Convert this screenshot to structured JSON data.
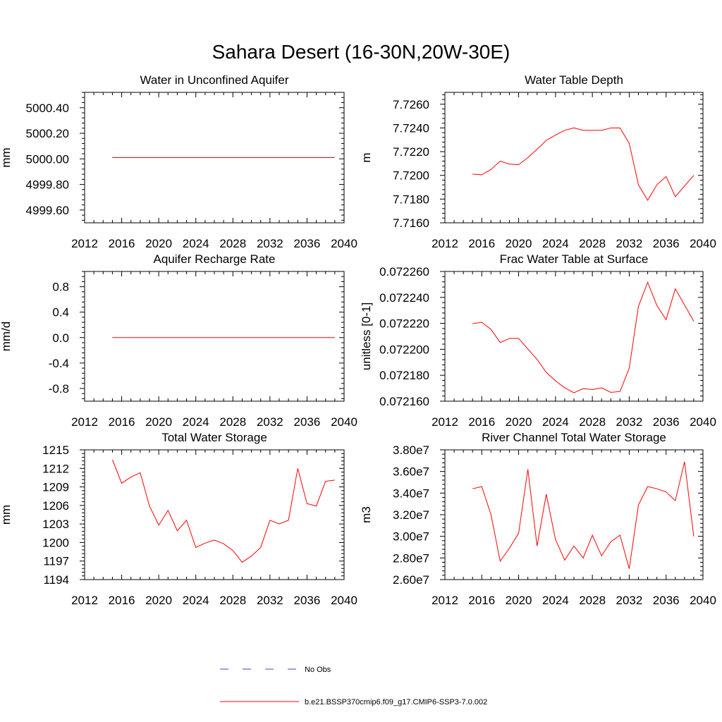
{
  "figure_title": "Sahara Desert (16-30N,20W-30E)",
  "colors": {
    "model_line": "#ff0000",
    "obs_line": "#4040c0",
    "axis": "#000000"
  },
  "legend": [
    {
      "label": "No Obs",
      "style": "dashed",
      "color": "#4040c0"
    },
    {
      "label": "b.e21.BSSP370cmip6.f09_g17.CMIP6-SSP3-7.0.002",
      "style": "solid",
      "color": "#ff0000"
    }
  ],
  "chart_data": [
    {
      "type": "line",
      "title": "Water in Unconfined Aquifer",
      "ylabel": "mm",
      "xlim": [
        2012,
        2040
      ],
      "xticks": [
        2012,
        2016,
        2020,
        2024,
        2028,
        2032,
        2036,
        2040
      ],
      "ylim": [
        4999.5,
        5000.52
      ],
      "yticks": [
        4999.6,
        4999.8,
        5000.0,
        5000.2,
        5000.4
      ],
      "ytick_labels": [
        "4999.60",
        "4999.80",
        "5000.00",
        "5000.20",
        "5000.40"
      ],
      "x": [
        2015,
        2016,
        2017,
        2018,
        2019,
        2020,
        2021,
        2022,
        2023,
        2024,
        2025,
        2026,
        2027,
        2028,
        2029,
        2030,
        2031,
        2032,
        2033,
        2034,
        2035,
        2036,
        2037,
        2038,
        2039
      ],
      "series": [
        {
          "values": [
            5000.01,
            5000.01,
            5000.01,
            5000.01,
            5000.01,
            5000.01,
            5000.01,
            5000.01,
            5000.01,
            5000.01,
            5000.01,
            5000.01,
            5000.01,
            5000.01,
            5000.01,
            5000.01,
            5000.01,
            5000.01,
            5000.01,
            5000.01,
            5000.01,
            5000.01,
            5000.01,
            5000.01,
            5000.01
          ]
        }
      ]
    },
    {
      "type": "line",
      "title": "Water Table Depth",
      "ylabel": "m",
      "xlim": [
        2012,
        2040
      ],
      "xticks": [
        2012,
        2016,
        2020,
        2024,
        2028,
        2032,
        2036,
        2040
      ],
      "ylim": [
        7.716,
        7.727
      ],
      "yticks": [
        7.716,
        7.718,
        7.72,
        7.722,
        7.724,
        7.726
      ],
      "ytick_labels": [
        "7.7160",
        "7.7180",
        "7.7200",
        "7.7220",
        "7.7240",
        "7.7260"
      ],
      "x": [
        2015,
        2016,
        2017,
        2018,
        2019,
        2020,
        2021,
        2022,
        2023,
        2024,
        2025,
        2026,
        2027,
        2028,
        2029,
        2030,
        2031,
        2032,
        2033,
        2034,
        2035,
        2036,
        2037,
        2038,
        2039
      ],
      "series": [
        {
          "values": [
            7.7201,
            7.72005,
            7.7205,
            7.7212,
            7.72095,
            7.7209,
            7.7215,
            7.7222,
            7.72295,
            7.7234,
            7.7238,
            7.724,
            7.7238,
            7.7238,
            7.7238,
            7.724,
            7.724,
            7.7227,
            7.7192,
            7.7179,
            7.7192,
            7.7199,
            7.7182,
            7.7191,
            7.72
          ]
        }
      ]
    },
    {
      "type": "line",
      "title": "Aquifer Recharge Rate",
      "ylabel": "mm/d",
      "xlim": [
        2012,
        2040
      ],
      "xticks": [
        2012,
        2016,
        2020,
        2024,
        2028,
        2032,
        2036,
        2040
      ],
      "ylim": [
        -1.0,
        1.04
      ],
      "yticks": [
        -0.8,
        -0.4,
        0.0,
        0.4,
        0.8
      ],
      "ytick_labels": [
        "-0.8",
        "-0.4",
        "0.0",
        "0.4",
        "0.8"
      ],
      "x": [
        2015,
        2016,
        2017,
        2018,
        2019,
        2020,
        2021,
        2022,
        2023,
        2024,
        2025,
        2026,
        2027,
        2028,
        2029,
        2030,
        2031,
        2032,
        2033,
        2034,
        2035,
        2036,
        2037,
        2038,
        2039
      ],
      "series": [
        {
          "values": [
            0,
            0,
            0,
            0,
            0,
            0,
            0,
            0,
            0,
            0,
            0,
            0,
            0,
            0,
            0,
            0,
            0,
            0,
            0,
            0,
            0,
            0,
            0,
            0,
            0
          ]
        }
      ]
    },
    {
      "type": "line",
      "title": "Frac Water Table at Surface",
      "ylabel": "unitless [0-1]",
      "xlim": [
        2012,
        2040
      ],
      "xticks": [
        2012,
        2016,
        2020,
        2024,
        2028,
        2032,
        2036,
        2040
      ],
      "ylim": [
        0.07216,
        0.07226
      ],
      "yticks": [
        0.07216,
        0.07218,
        0.0722,
        0.07222,
        0.07224,
        0.07226
      ],
      "ytick_labels": [
        "0.072160",
        "0.072180",
        "0.072200",
        "0.072220",
        "0.072240",
        "0.072260"
      ],
      "x": [
        2015,
        2016,
        2017,
        2018,
        2019,
        2020,
        2021,
        2022,
        2023,
        2024,
        2025,
        2026,
        2027,
        2028,
        2029,
        2030,
        2031,
        2032,
        2033,
        2034,
        2035,
        2036,
        2037,
        2038,
        2039
      ],
      "series": [
        {
          "values": [
            0.0722198,
            0.0722208,
            0.0722154,
            0.0722052,
            0.0722084,
            0.0722084,
            0.0722002,
            0.0721922,
            0.0721822,
            0.0721756,
            0.0721703,
            0.0721665,
            0.0721697,
            0.072169,
            0.0721703,
            0.0721668,
            0.0721675,
            0.0721854,
            0.0722332,
            0.0722516,
            0.0722338,
            0.0722228,
            0.0722466,
            0.0722342,
            0.0722216
          ]
        }
      ]
    },
    {
      "type": "line",
      "title": "Total Water Storage",
      "ylabel": "mm",
      "xlim": [
        2012,
        2040
      ],
      "xticks": [
        2012,
        2016,
        2020,
        2024,
        2028,
        2032,
        2036,
        2040
      ],
      "ylim": [
        1194,
        1215
      ],
      "yticks": [
        1194,
        1197,
        1200,
        1203,
        1206,
        1209,
        1212,
        1215
      ],
      "ytick_labels": [
        "1194",
        "1197",
        "1200",
        "1203",
        "1206",
        "1209",
        "1212",
        "1215"
      ],
      "x": [
        2015,
        2016,
        2017,
        2018,
        2019,
        2020,
        2021,
        2022,
        2023,
        2024,
        2025,
        2026,
        2027,
        2028,
        2029,
        2030,
        2031,
        2032,
        2033,
        2034,
        2035,
        2036,
        2037,
        2038,
        2039
      ],
      "series": [
        {
          "values": [
            1213.4,
            1209.6,
            1210.6,
            1211.3,
            1205.9,
            1202.8,
            1205.2,
            1201.9,
            1203.6,
            1199.2,
            1199.9,
            1200.4,
            1199.8,
            1198.7,
            1196.8,
            1197.8,
            1199.2,
            1203.6,
            1203.0,
            1203.6,
            1212.0,
            1206.3,
            1205.9,
            1209.9,
            1210.1
          ]
        }
      ]
    },
    {
      "type": "line",
      "title": "River Channel Total Water Storage",
      "ylabel": "m3",
      "xlim": [
        2012,
        2040
      ],
      "xticks": [
        2012,
        2016,
        2020,
        2024,
        2028,
        2032,
        2036,
        2040
      ],
      "ylim": [
        26000000,
        38000000
      ],
      "yticks": [
        26000000,
        28000000,
        30000000,
        32000000,
        34000000,
        36000000,
        38000000
      ],
      "ytick_labels": [
        "2.60e7",
        "2.80e7",
        "3.00e7",
        "3.20e7",
        "3.40e7",
        "3.60e7",
        "3.80e7"
      ],
      "x": [
        2015,
        2016,
        2017,
        2018,
        2019,
        2020,
        2021,
        2022,
        2023,
        2024,
        2025,
        2026,
        2027,
        2028,
        2029,
        2030,
        2031,
        2032,
        2033,
        2034,
        2035,
        2036,
        2037,
        2038,
        2039
      ],
      "series": [
        {
          "values": [
            34400000,
            34600000,
            32000000,
            27700000,
            28900000,
            30300000,
            36200000,
            29100000,
            33900000,
            29700000,
            27800000,
            29100000,
            28000000,
            30100000,
            28200000,
            29500000,
            30100000,
            27000000,
            32900000,
            34600000,
            34400000,
            34100000,
            33300000,
            36900000,
            30000000
          ]
        }
      ]
    }
  ]
}
